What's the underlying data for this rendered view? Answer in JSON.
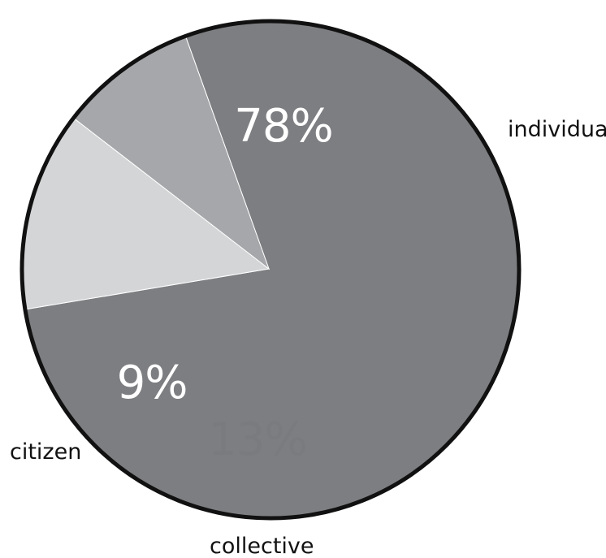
{
  "chart_data": {
    "type": "pie",
    "title": "",
    "slices": [
      {
        "name": "individual",
        "value": 78,
        "label": "78%",
        "color": "#7d7e81",
        "label_color": "#ffffff"
      },
      {
        "name": "citizen",
        "value": 9,
        "label": "9%",
        "color": "#a6a7aa",
        "label_color": "#ffffff"
      },
      {
        "name": "collective",
        "value": 13,
        "label": "13%",
        "color": "#d4d5d6",
        "label_color": "#7a7b7e"
      }
    ],
    "outline_color": "#111111",
    "legend": "none"
  }
}
